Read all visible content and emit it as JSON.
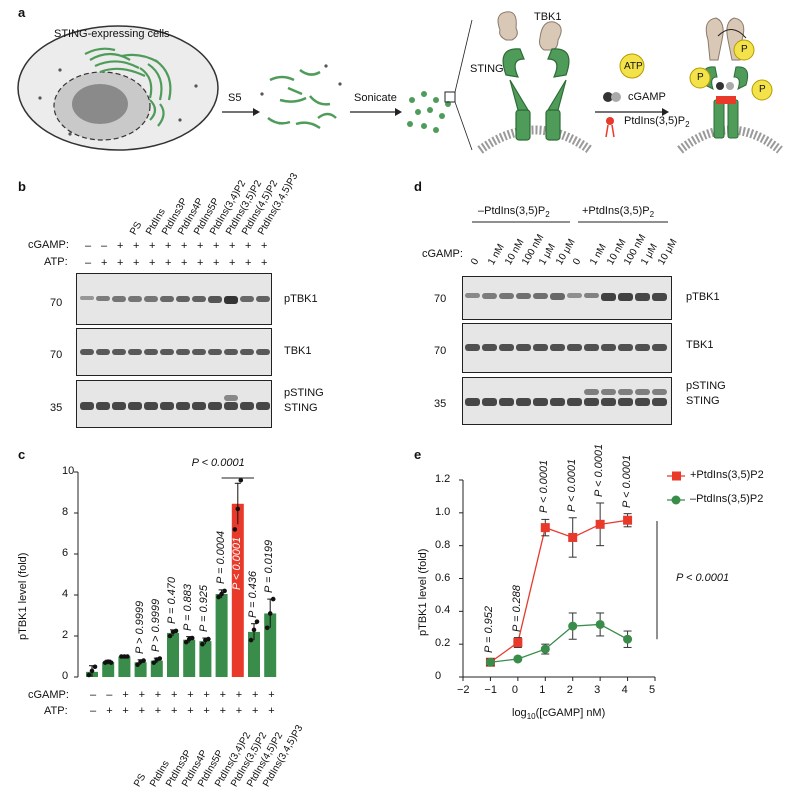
{
  "panel_a": {
    "letter": "a",
    "cell_label": "STING-expressing cells",
    "step1": "S5",
    "step2": "Sonicate",
    "tbk1": "TBK1",
    "sting": "STING",
    "atp": "ATP",
    "cgamp": "cGAMP",
    "ptdins": "PtdIns(3,5)P",
    "ptdins_sub": "2",
    "phospho": "P"
  },
  "panel_b": {
    "letter": "b",
    "lanes": [
      "PS",
      "PtdIns",
      "PtdIns3P",
      "PtdIns4P",
      "PtdIns5P",
      "PtdIns(3,4)P2",
      "PtdIns(3,5)P2",
      "PtdIns(4,5)P2",
      "PtdIns(3,4,5)P3"
    ],
    "cgamp_label": "cGAMP:",
    "atp_label": "ATP:",
    "cgamp_row": [
      "–",
      "–",
      "+",
      "+",
      "+",
      "+",
      "+",
      "+",
      "+",
      "+",
      "+",
      "+"
    ],
    "atp_row": [
      "–",
      "+",
      "+",
      "+",
      "+",
      "+",
      "+",
      "+",
      "+",
      "+",
      "+",
      "+"
    ],
    "blot_labels": [
      "pTBK1",
      "TBK1",
      "pSTING",
      "STING"
    ],
    "mw": [
      "70",
      "70",
      "35"
    ]
  },
  "panel_d": {
    "letter": "d",
    "group1": "–PtdIns(3,5)P",
    "group2": "+PtdIns(3,5)P",
    "group_sub": "2",
    "cgamp_label": "cGAMP:",
    "concs": [
      "0",
      "1 nM",
      "10 nM",
      "100 nM",
      "1 μM",
      "10 μM",
      "0",
      "1 nM",
      "10 nM",
      "100 nM",
      "1 μM",
      "10 μM"
    ],
    "blot_labels": [
      "pTBK1",
      "TBK1",
      "pSTING",
      "STING"
    ],
    "mw": [
      "70",
      "70",
      "35"
    ]
  },
  "panel_c": {
    "letter": "c",
    "chart_data": {
      "type": "bar",
      "ylabel": "pTBK1 level (fold)",
      "ylim": [
        0,
        10
      ],
      "yticks": [
        "0",
        "2",
        "4",
        "6",
        "8",
        "10"
      ],
      "cgamp_row": [
        "–",
        "–",
        "+",
        "+",
        "+",
        "+",
        "+",
        "+",
        "+",
        "+",
        "+",
        "+"
      ],
      "atp_row": [
        "–",
        "+",
        "+",
        "+",
        "+",
        "+",
        "+",
        "+",
        "+",
        "+",
        "+",
        "+"
      ],
      "categories": [
        "",
        "",
        "",
        "PS",
        "PtdIns",
        "PtdIns3P",
        "PtdIns4P",
        "PtdIns5P",
        "PtdIns(3,4)P2",
        "PtdIns(3,5)P2",
        "PtdIns(4,5)P2",
        "PtdIns(3,4,5)P3"
      ],
      "values": [
        0.25,
        0.72,
        1.0,
        0.72,
        0.8,
        2.15,
        1.82,
        1.75,
        4.05,
        8.45,
        2.2,
        3.1
      ],
      "errors": [
        0.3,
        0.1,
        0.03,
        0.12,
        0.12,
        0.15,
        0.15,
        0.15,
        0.2,
        1.0,
        0.4,
        0.7
      ],
      "highlight_index": 9,
      "pvalues": [
        "",
        "",
        "",
        "P > 0.9999",
        "P > 0.9999",
        "P = 0.470",
        "P = 0.883",
        "P = 0.925",
        "P = 0.0004",
        "P < 0.0001",
        "P = 0.436",
        "P = 0.0199"
      ],
      "bracket_label": "P < 0.0001",
      "colors": {
        "bar": "#3a8c4a",
        "highlight": "#e8392b"
      },
      "xlabel_cgamp": "cGAMP:",
      "xlabel_atp": "ATP:"
    }
  },
  "panel_e": {
    "letter": "e",
    "chart_data": {
      "type": "line",
      "xlabel": "log10([cGAMP] nM)",
      "ylabel": "pTBK1 level (fold)",
      "xlim": [
        -2,
        5
      ],
      "ylim": [
        0,
        1.2
      ],
      "xticks": [
        "−2",
        "−1",
        "0",
        "1",
        "2",
        "3",
        "4",
        "5"
      ],
      "yticks": [
        "0",
        "0.2",
        "0.4",
        "0.6",
        "0.8",
        "1.0",
        "1.2"
      ],
      "x": [
        -1,
        0,
        1,
        2,
        3,
        4
      ],
      "series": [
        {
          "name": "+PtdIns(3,5)P2",
          "values": [
            0.09,
            0.21,
            0.91,
            0.85,
            0.93,
            0.955
          ],
          "errors": [
            0.02,
            0.03,
            0.05,
            0.12,
            0.13,
            0.04
          ],
          "color": "#e8392b",
          "marker": "square"
        },
        {
          "name": "–PtdIns(3,5)P2",
          "values": [
            0.09,
            0.11,
            0.17,
            0.31,
            0.32,
            0.23
          ],
          "errors": [
            0.02,
            0.01,
            0.03,
            0.08,
            0.07,
            0.05
          ],
          "color": "#3a8c4a",
          "marker": "circle"
        }
      ],
      "pvalues": [
        "P = 0.952",
        "P = 0.288",
        "P < 0.0001",
        "P < 0.0001",
        "P < 0.0001",
        "P < 0.0001"
      ],
      "overall_p": "P < 0.0001"
    }
  }
}
